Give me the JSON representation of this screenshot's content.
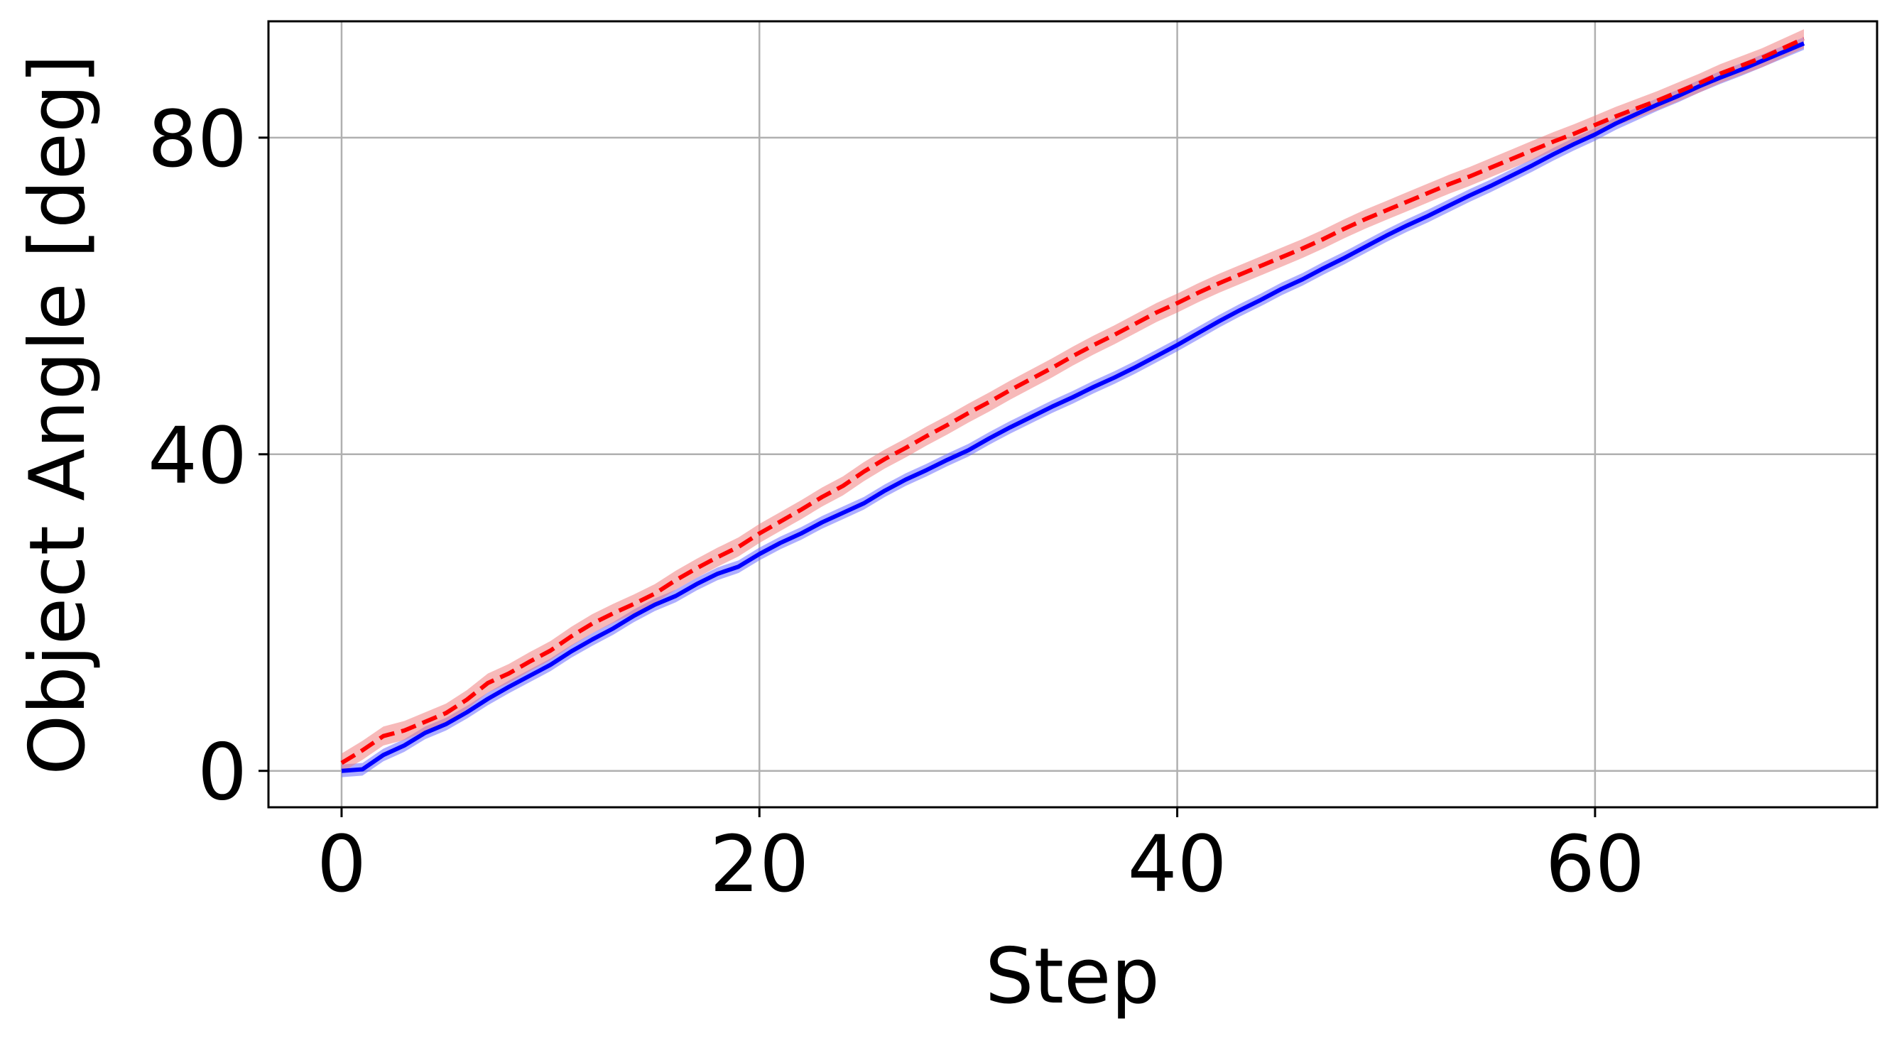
{
  "chart_data": {
    "type": "line",
    "xlabel": "Step",
    "ylabel": "Object Angle [deg]",
    "xlim": [
      -3.5,
      73.5
    ],
    "ylim": [
      -4.6,
      94.7
    ],
    "x_ticks": [
      0,
      20,
      40,
      60
    ],
    "x_tick_labels": [
      "0",
      "20",
      "40",
      "60"
    ],
    "y_ticks": [
      0,
      40,
      80
    ],
    "y_tick_labels": [
      "0",
      "40",
      "80"
    ],
    "grid": true,
    "legend": "none",
    "series": [
      {
        "color": "#0000ff",
        "style": "solid",
        "band_color": "#6b6bff",
        "x": [
          0,
          1,
          2,
          3,
          4,
          5,
          6,
          7,
          8,
          9,
          10,
          11,
          12,
          13,
          14,
          15,
          16,
          17,
          18,
          19,
          20,
          21,
          22,
          23,
          24,
          25,
          26,
          27,
          28,
          29,
          30,
          31,
          32,
          33,
          34,
          35,
          36,
          37,
          38,
          39,
          40,
          41,
          42,
          43,
          44,
          45,
          46,
          47,
          48,
          49,
          50,
          51,
          52,
          53,
          54,
          55,
          56,
          57,
          58,
          59,
          60,
          61,
          62,
          63,
          64,
          65,
          66,
          67,
          68,
          69,
          70
        ],
        "y": [
          0.0,
          0.2,
          2.0,
          3.2,
          4.8,
          5.9,
          7.4,
          9.1,
          10.6,
          12.0,
          13.4,
          15.1,
          16.6,
          18.0,
          19.6,
          21.0,
          22.1,
          23.6,
          24.9,
          25.8,
          27.4,
          28.8,
          30.0,
          31.4,
          32.6,
          33.8,
          35.4,
          36.8,
          38.0,
          39.3,
          40.5,
          42.0,
          43.4,
          44.7,
          46.0,
          47.2,
          48.5,
          49.7,
          51.0,
          52.4,
          53.8,
          55.3,
          56.8,
          58.2,
          59.5,
          60.9,
          62.1,
          63.5,
          64.8,
          66.2,
          67.6,
          68.9,
          70.1,
          71.4,
          72.7,
          73.9,
          75.2,
          76.5,
          77.9,
          79.2,
          80.4,
          81.8,
          83.0,
          84.2,
          85.3,
          86.5,
          87.6,
          88.6,
          89.7,
          90.8,
          91.9
        ],
        "band": 0.8
      },
      {
        "color": "#ff0000",
        "style": "dashed",
        "band_color": "#f08080",
        "x": [
          0,
          1,
          2,
          3,
          4,
          5,
          6,
          7,
          8,
          9,
          10,
          11,
          12,
          13,
          14,
          15,
          16,
          17,
          18,
          19,
          20,
          21,
          22,
          23,
          24,
          25,
          26,
          27,
          28,
          29,
          30,
          31,
          32,
          33,
          34,
          35,
          36,
          37,
          38,
          39,
          40,
          41,
          42,
          43,
          44,
          45,
          46,
          47,
          48,
          49,
          50,
          51,
          52,
          53,
          54,
          55,
          56,
          57,
          58,
          59,
          60,
          61,
          62,
          63,
          64,
          65,
          66,
          67,
          68,
          69,
          70
        ],
        "y": [
          1.0,
          2.6,
          4.4,
          5.1,
          6.2,
          7.3,
          9.0,
          11.1,
          12.3,
          13.8,
          15.2,
          17.0,
          18.6,
          19.9,
          21.1,
          22.4,
          24.1,
          25.6,
          27.0,
          28.3,
          30.0,
          31.5,
          33.0,
          34.6,
          36.0,
          37.8,
          39.4,
          40.8,
          42.3,
          43.7,
          45.2,
          46.6,
          48.1,
          49.5,
          50.9,
          52.4,
          53.8,
          55.1,
          56.5,
          57.9,
          59.1,
          60.4,
          61.6,
          62.7,
          63.8,
          64.9,
          66.0,
          67.2,
          68.5,
          69.7,
          70.8,
          71.9,
          73.0,
          74.1,
          75.1,
          76.2,
          77.3,
          78.4,
          79.5,
          80.5,
          81.6,
          82.7,
          83.7,
          84.7,
          85.8,
          86.9,
          88.1,
          89.1,
          90.1,
          91.3,
          92.5
        ],
        "band": 1.2
      }
    ]
  }
}
